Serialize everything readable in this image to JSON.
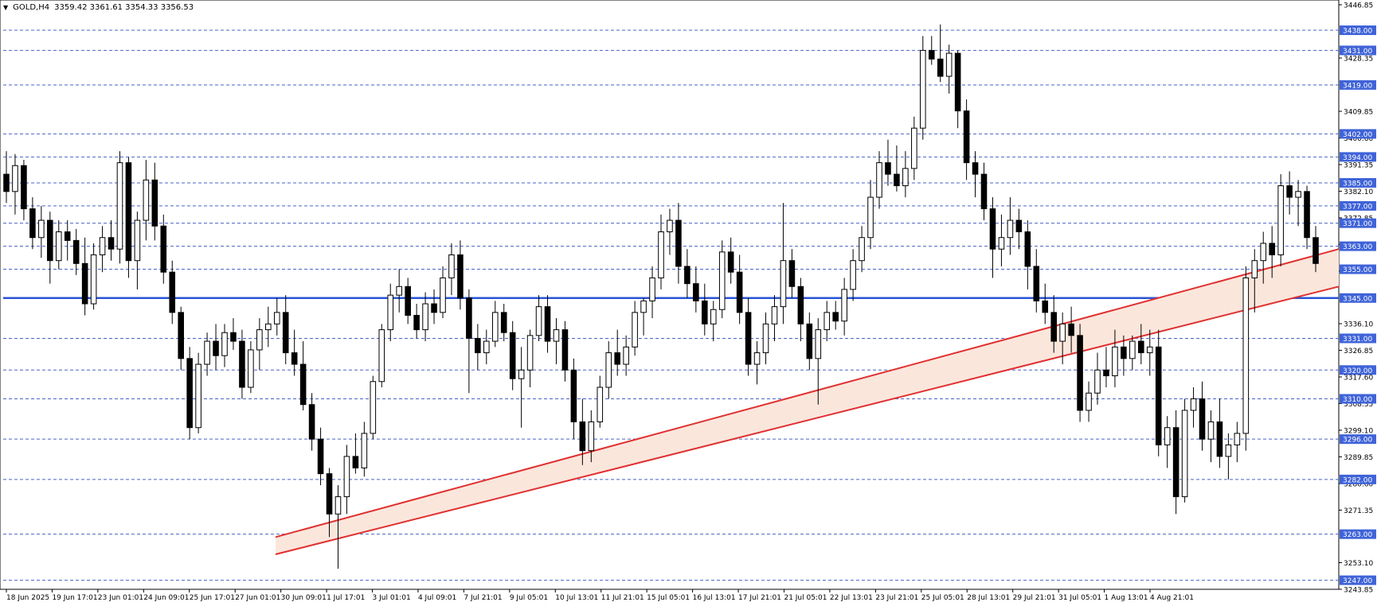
{
  "header": {
    "symbol": "GOLD,H4",
    "ohlc": "3359.42 3361.61 3354.33 3356.53"
  },
  "colors": {
    "grid_level": "#4a63c8",
    "main_level": "#2a56d6",
    "channel": "#e03030",
    "channel_fill": "#fbe6dc",
    "candle": "#000000",
    "tag_bg": "#3f63d8"
  },
  "chart_data": {
    "type": "candlestick",
    "ylim": [
      3243.85,
      3446.85
    ],
    "y_ticks": [
      "3446.85",
      "3428.35",
      "3409.85",
      "3400.60",
      "3391.35",
      "3382.10",
      "3372.85",
      "3363.60",
      "3354.35",
      "3336.10",
      "3326.85",
      "3317.60",
      "3308.35",
      "3299.10",
      "3289.85",
      "3280.60",
      "3271.35",
      "3253.10",
      "3243.85"
    ],
    "levels": [
      3438.0,
      3431.0,
      3419.0,
      3402.0,
      3394.0,
      3385.0,
      3377.0,
      3371.0,
      3363.0,
      3355.0,
      3345.0,
      3331.0,
      3320.0,
      3310.0,
      3296.0,
      3282.0,
      3263.0,
      3247.0
    ],
    "level_labels": [
      "3438.00",
      "3431.00",
      "3419.00",
      "3402.00",
      "3394.00",
      "3385.00",
      "3377.00",
      "3371.00",
      "3363.00",
      "3355.00",
      "3345.00",
      "3331.00",
      "3320.00",
      "3310.00",
      "3296.00",
      "3282.00",
      "3263.00",
      "3247.00"
    ],
    "main_level": 3345.0,
    "x_labels": [
      "18 Jun 2025",
      "19 Jun 17:01",
      "23 Jun 01:01",
      "24 Jun 09:01",
      "25 Jun 17:01",
      "27 Jun 01:01",
      "30 Jun 09:01",
      "1 Jul 17:01",
      "3 Jul 01:01",
      "4 Jul 09:01",
      "7 Jul 21:01",
      "9 Jul 05:01",
      "10 Jul 13:01",
      "11 Jul 21:01",
      "15 Jul 05:01",
      "16 Jul 13:01",
      "17 Jul 21:01",
      "21 Jul 05:01",
      "22 Jul 13:01",
      "23 Jul 21:01",
      "25 Jul 05:01",
      "28 Jul 13:01",
      "29 Jul 21:01",
      "31 Jul 05:01",
      "1 Aug 13:01",
      "4 Aug 21:01"
    ],
    "channel": {
      "upper": {
        "start_bar": 0,
        "start": 3262.0,
        "end_bar": 1,
        "end": 3362.0
      },
      "lower": {
        "start_bar": 0,
        "start": 3256.0,
        "end_bar": 1,
        "end": 3349.0
      }
    },
    "candles": [
      [
        3388,
        3396,
        3378,
        3382
      ],
      [
        3382,
        3395,
        3374,
        3391
      ],
      [
        3391,
        3393,
        3372,
        3376
      ],
      [
        3376,
        3380,
        3362,
        3366
      ],
      [
        3366,
        3377,
        3359,
        3372
      ],
      [
        3372,
        3375,
        3350,
        3358
      ],
      [
        3358,
        3372,
        3355,
        3368
      ],
      [
        3368,
        3372,
        3358,
        3365
      ],
      [
        3365,
        3369,
        3353,
        3357
      ],
      [
        3357,
        3366,
        3339,
        3343
      ],
      [
        3343,
        3364,
        3341,
        3360
      ],
      [
        3360,
        3370,
        3354,
        3366
      ],
      [
        3366,
        3372,
        3358,
        3362
      ],
      [
        3362,
        3396,
        3357,
        3392
      ],
      [
        3392,
        3394,
        3352,
        3358
      ],
      [
        3358,
        3375,
        3348,
        3372
      ],
      [
        3372,
        3393,
        3365,
        3386
      ],
      [
        3386,
        3392,
        3365,
        3370
      ],
      [
        3370,
        3374,
        3350,
        3354
      ],
      [
        3354,
        3358,
        3336,
        3340
      ],
      [
        3340,
        3342,
        3320,
        3324
      ],
      [
        3324,
        3328,
        3296,
        3300
      ],
      [
        3300,
        3326,
        3298,
        3322
      ],
      [
        3322,
        3333,
        3318,
        3330
      ],
      [
        3330,
        3336,
        3320,
        3325
      ],
      [
        3325,
        3336,
        3321,
        3333
      ],
      [
        3333,
        3338,
        3327,
        3330
      ],
      [
        3330,
        3334,
        3310,
        3314
      ],
      [
        3314,
        3330,
        3312,
        3327
      ],
      [
        3327,
        3338,
        3320,
        3334
      ],
      [
        3334,
        3342,
        3328,
        3336
      ],
      [
        3336,
        3345,
        3332,
        3340
      ],
      [
        3340,
        3346,
        3322,
        3326
      ],
      [
        3326,
        3334,
        3318,
        3322
      ],
      [
        3322,
        3330,
        3306,
        3308
      ],
      [
        3308,
        3312,
        3292,
        3296
      ],
      [
        3296,
        3300,
        3280,
        3284
      ],
      [
        3284,
        3286,
        3262,
        3270
      ],
      [
        3270,
        3280,
        3251,
        3276
      ],
      [
        3276,
        3294,
        3270,
        3290
      ],
      [
        3290,
        3298,
        3284,
        3286
      ],
      [
        3286,
        3302,
        3283,
        3298
      ],
      [
        3298,
        3318,
        3296,
        3316
      ],
      [
        3316,
        3336,
        3314,
        3334
      ],
      [
        3334,
        3350,
        3330,
        3346
      ],
      [
        3346,
        3355,
        3340,
        3349
      ],
      [
        3349,
        3352,
        3336,
        3339
      ],
      [
        3339,
        3343,
        3331,
        3334
      ],
      [
        3334,
        3347,
        3330,
        3343
      ],
      [
        3343,
        3348,
        3336,
        3340
      ],
      [
        3340,
        3356,
        3338,
        3352
      ],
      [
        3352,
        3364,
        3346,
        3360
      ],
      [
        3360,
        3365,
        3341,
        3345
      ],
      [
        3345,
        3348,
        3312,
        3331
      ],
      [
        3331,
        3336,
        3320,
        3326
      ],
      [
        3326,
        3334,
        3322,
        3330
      ],
      [
        3330,
        3344,
        3328,
        3340
      ],
      [
        3340,
        3343,
        3330,
        3333
      ],
      [
        3333,
        3337,
        3313,
        3317
      ],
      [
        3317,
        3328,
        3300,
        3320
      ],
      [
        3320,
        3334,
        3314,
        3332
      ],
      [
        3332,
        3346,
        3330,
        3342
      ],
      [
        3342,
        3346,
        3326,
        3330
      ],
      [
        3330,
        3338,
        3322,
        3334
      ],
      [
        3334,
        3337,
        3316,
        3320
      ],
      [
        3320,
        3324,
        3296,
        3302
      ],
      [
        3302,
        3310,
        3287,
        3292
      ],
      [
        3292,
        3306,
        3288,
        3302
      ],
      [
        3302,
        3318,
        3300,
        3314
      ],
      [
        3314,
        3330,
        3310,
        3326
      ],
      [
        3326,
        3334,
        3318,
        3322
      ],
      [
        3322,
        3332,
        3318,
        3328
      ],
      [
        3328,
        3344,
        3325,
        3340
      ],
      [
        3340,
        3345,
        3332,
        3344
      ],
      [
        3344,
        3356,
        3338,
        3352
      ],
      [
        3352,
        3374,
        3348,
        3368
      ],
      [
        3368,
        3376,
        3360,
        3372
      ],
      [
        3372,
        3378,
        3350,
        3356
      ],
      [
        3356,
        3362,
        3345,
        3350
      ],
      [
        3350,
        3356,
        3340,
        3344
      ],
      [
        3344,
        3350,
        3332,
        3336
      ],
      [
        3336,
        3344,
        3330,
        3341
      ],
      [
        3341,
        3365,
        3338,
        3361
      ],
      [
        3361,
        3366,
        3350,
        3354
      ],
      [
        3354,
        3360,
        3336,
        3340
      ],
      [
        3340,
        3345,
        3318,
        3322
      ],
      [
        3322,
        3330,
        3315,
        3326
      ],
      [
        3326,
        3340,
        3322,
        3336
      ],
      [
        3336,
        3346,
        3330,
        3342
      ],
      [
        3342,
        3378,
        3336,
        3358
      ],
      [
        3358,
        3362,
        3345,
        3349
      ],
      [
        3349,
        3352,
        3330,
        3336
      ],
      [
        3336,
        3340,
        3320,
        3324
      ],
      [
        3324,
        3338,
        3308,
        3334
      ],
      [
        3334,
        3344,
        3330,
        3340
      ],
      [
        3340,
        3344,
        3334,
        3337
      ],
      [
        3337,
        3352,
        3332,
        3348
      ],
      [
        3348,
        3362,
        3344,
        3358
      ],
      [
        3358,
        3370,
        3354,
        3366
      ],
      [
        3366,
        3386,
        3362,
        3380
      ],
      [
        3380,
        3396,
        3376,
        3392
      ],
      [
        3392,
        3400,
        3384,
        3388
      ],
      [
        3388,
        3398,
        3382,
        3384
      ],
      [
        3384,
        3396,
        3380,
        3390
      ],
      [
        3390,
        3408,
        3386,
        3404
      ],
      [
        3404,
        3436,
        3400,
        3431
      ],
      [
        3431,
        3436,
        3426,
        3428
      ],
      [
        3428,
        3440,
        3420,
        3422
      ],
      [
        3422,
        3433,
        3416,
        3430
      ],
      [
        3430,
        3431,
        3404,
        3410
      ],
      [
        3410,
        3414,
        3386,
        3392
      ],
      [
        3392,
        3396,
        3380,
        3388
      ],
      [
        3388,
        3392,
        3372,
        3376
      ],
      [
        3376,
        3380,
        3352,
        3362
      ],
      [
        3362,
        3374,
        3356,
        3366
      ],
      [
        3366,
        3380,
        3360,
        3372
      ],
      [
        3372,
        3376,
        3362,
        3368
      ],
      [
        3368,
        3372,
        3348,
        3356
      ],
      [
        3356,
        3362,
        3340,
        3344
      ],
      [
        3344,
        3350,
        3336,
        3340
      ],
      [
        3340,
        3346,
        3326,
        3330
      ],
      [
        3330,
        3340,
        3322,
        3336
      ],
      [
        3336,
        3342,
        3326,
        3332
      ],
      [
        3332,
        3336,
        3302,
        3306
      ],
      [
        3306,
        3316,
        3302,
        3312
      ],
      [
        3312,
        3326,
        3308,
        3320
      ],
      [
        3320,
        3328,
        3314,
        3318
      ],
      [
        3318,
        3334,
        3314,
        3328
      ],
      [
        3328,
        3332,
        3318,
        3324
      ],
      [
        3324,
        3332,
        3320,
        3330
      ],
      [
        3330,
        3336,
        3322,
        3326
      ],
      [
        3326,
        3334,
        3318,
        3328
      ],
      [
        3328,
        3334,
        3290,
        3294
      ],
      [
        3294,
        3304,
        3286,
        3300
      ],
      [
        3300,
        3306,
        3270,
        3276
      ],
      [
        3276,
        3310,
        3274,
        3306
      ],
      [
        3306,
        3314,
        3300,
        3310
      ],
      [
        3310,
        3316,
        3292,
        3296
      ],
      [
        3296,
        3306,
        3288,
        3302
      ],
      [
        3302,
        3310,
        3286,
        3290
      ],
      [
        3290,
        3298,
        3282,
        3294
      ],
      [
        3294,
        3302,
        3288,
        3298
      ],
      [
        3298,
        3356,
        3292,
        3352
      ],
      [
        3352,
        3362,
        3340,
        3358
      ],
      [
        3358,
        3368,
        3350,
        3364
      ],
      [
        3364,
        3370,
        3352,
        3360
      ],
      [
        3360,
        3388,
        3356,
        3384
      ],
      [
        3384,
        3389,
        3374,
        3380
      ],
      [
        3380,
        3386,
        3370,
        3382
      ],
      [
        3382,
        3384,
        3362,
        3366
      ],
      [
        3366,
        3370,
        3354,
        3357
      ]
    ]
  }
}
